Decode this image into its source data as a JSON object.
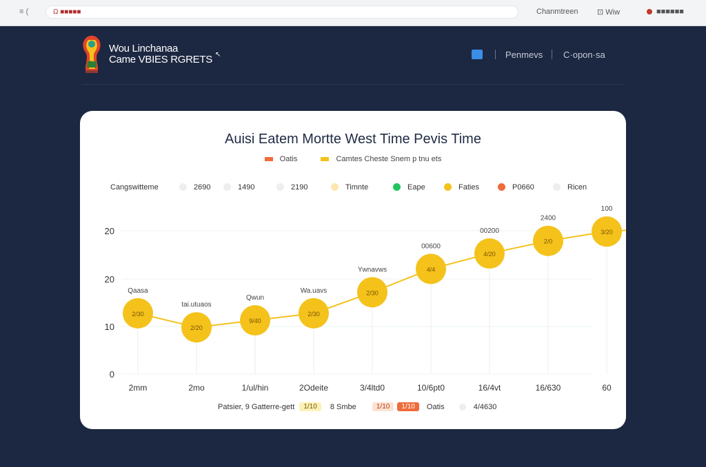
{
  "browser": {
    "menu": "≡ (",
    "url": "Ω ■■■■■",
    "link_account": "Chanmtreen",
    "link_view": "⊡ Wiw",
    "link_user": "■■■■■■"
  },
  "site": {
    "brand_line1": "Wou Linchanaa",
    "brand_line2": "Came VBIES RGRETS",
    "brand_arrow": "↖",
    "nav_link1": "Penmevs",
    "nav_link2": "C·opon·sa",
    "colors": {
      "background": "#1c2741",
      "accent": "#f4c21b",
      "brand_red": "#e0442b"
    }
  },
  "card": {
    "title": "Auisi Eatem Mortte West Time Pevis Time",
    "legend_top": [
      {
        "label": "Oatis",
        "color": "#ef6b3a"
      },
      {
        "label": "Camtes Cheste Snem p tnu ets",
        "color": "#f4c21b"
      }
    ],
    "filters": [
      {
        "label": "Cangswitteme",
        "color": "#ffffff"
      },
      {
        "label": "2690",
        "color": "#eeeeee"
      },
      {
        "label": "1490",
        "color": "#eeeeee"
      },
      {
        "label": "2190",
        "color": "#eeeeee"
      },
      {
        "label": "Timnte",
        "color": "#fde7b0"
      },
      {
        "label": "Eape",
        "color": "#22c55e"
      },
      {
        "label": "Faties",
        "color": "#f4c21b"
      },
      {
        "label": "P0660",
        "color": "#ef6b3a"
      },
      {
        "label": "Ricen",
        "color": "#eeeeee"
      }
    ],
    "legend_bottom": {
      "label1": "Patsier, 9 Gatterre-gett",
      "tag1": "1/10",
      "label2": "8 Smbe",
      "tag2": "1/10",
      "tag3": "1/10",
      "label3": "Oatis",
      "label4": "4/4630"
    }
  },
  "chart_data": {
    "type": "line",
    "title": "Auisi Eatem Mortte West Time Pevis Time",
    "y_tick_labels": [
      "0",
      "10",
      "20",
      "20"
    ],
    "categories": [
      "2mm",
      "2mo",
      "1/ul/hin",
      "2Odeite",
      "3/4ltd0",
      "10/6pt0",
      "16/4vt",
      "16/630",
      "60"
    ],
    "series": [
      {
        "name": "Camtes Cheste Snem p tnu ets",
        "color": "#f4c21b",
        "values": [
          13,
          10,
          11.5,
          13,
          17.5,
          22.5,
          25.8,
          28.5,
          30.5
        ],
        "point_labels": [
          "2/30",
          "2/20",
          "9/40",
          "2/30",
          "2/30",
          "4/4",
          "4/20",
          "2/0",
          "3/20"
        ],
        "top_labels": [
          "Qaasa",
          "tai.utuaos",
          "Qwun",
          "Wa.uavs",
          "Ywnavws",
          "00600",
          "00200",
          "2400",
          "100"
        ]
      }
    ],
    "ylim": [
      0,
      32
    ],
    "grid": true,
    "legend": "top-center"
  }
}
